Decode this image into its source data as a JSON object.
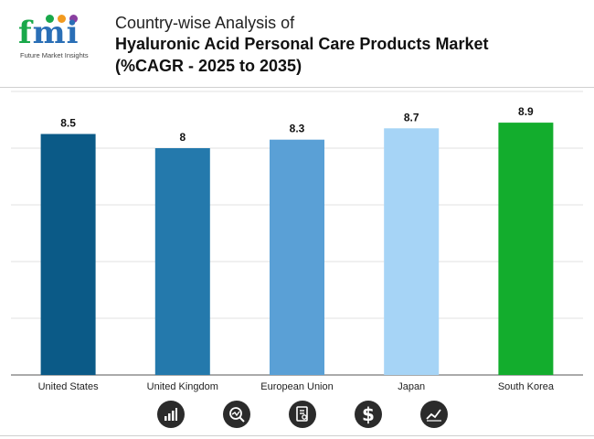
{
  "logo": {
    "text": "fmi",
    "subtitle": "Future Market Insights",
    "dot_colors": [
      "#19a84a",
      "#f29a1f",
      "#8a3fa0"
    ]
  },
  "header": {
    "title_line1": "Country-wise Analysis of",
    "title_line2": "Hyaluronic Acid Personal Care Products Market",
    "title_line3": "(%CAGR - 2025 to 2035)"
  },
  "chart_data": {
    "type": "bar",
    "categories": [
      "United States",
      "United Kingdom",
      "European Union",
      "Japan",
      "South Korea"
    ],
    "values": [
      8.5,
      8,
      8.3,
      8.7,
      8.9
    ],
    "value_labels": [
      "8.5",
      "8",
      "8.3",
      "8.7",
      "8.9"
    ],
    "colors": [
      "#0b5a87",
      "#2479ac",
      "#5aa0d6",
      "#a6d4f6",
      "#13ad2d"
    ],
    "ylim": [
      0,
      10
    ],
    "grid": true,
    "title": "",
    "xlabel": "",
    "ylabel": ""
  },
  "footer_icons": [
    "bar-chart-icon",
    "magnifier-chart-icon",
    "document-icon",
    "dollar-icon",
    "trend-line-icon"
  ]
}
